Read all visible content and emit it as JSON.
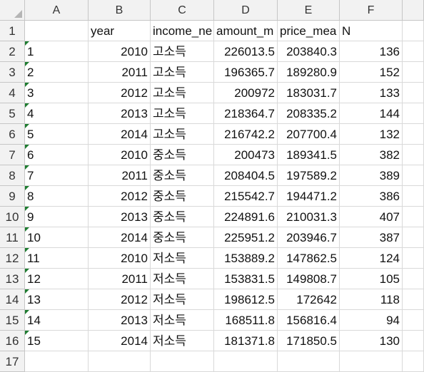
{
  "columns": [
    "A",
    "B",
    "C",
    "D",
    "E",
    "F"
  ],
  "row_numbers": [
    "1",
    "2",
    "3",
    "4",
    "5",
    "6",
    "7",
    "8",
    "9",
    "10",
    "11",
    "12",
    "13",
    "14",
    "15",
    "16",
    "17"
  ],
  "header_row": [
    "",
    "year",
    "income_ne",
    "amount_m",
    "price_mea",
    "N"
  ],
  "rows": [
    [
      "1",
      "2010",
      "고소득",
      "226013.5",
      "203840.3",
      "136"
    ],
    [
      "2",
      "2011",
      "고소득",
      "196365.7",
      "189280.9",
      "152"
    ],
    [
      "3",
      "2012",
      "고소득",
      "200972",
      "183031.7",
      "133"
    ],
    [
      "4",
      "2013",
      "고소득",
      "218364.7",
      "208335.2",
      "144"
    ],
    [
      "5",
      "2014",
      "고소득",
      "216742.2",
      "207700.4",
      "132"
    ],
    [
      "6",
      "2010",
      "중소득",
      "200473",
      "189341.5",
      "382"
    ],
    [
      "7",
      "2011",
      "중소득",
      "208404.5",
      "197589.2",
      "389"
    ],
    [
      "8",
      "2012",
      "중소득",
      "215542.7",
      "194471.2",
      "386"
    ],
    [
      "9",
      "2013",
      "중소득",
      "224891.6",
      "210031.3",
      "407"
    ],
    [
      "10",
      "2014",
      "중소득",
      "225951.2",
      "203946.7",
      "387"
    ],
    [
      "11",
      "2010",
      "저소득",
      "153889.2",
      "147862.5",
      "124"
    ],
    [
      "12",
      "2011",
      "저소득",
      "153831.5",
      "149808.7",
      "105"
    ],
    [
      "13",
      "2012",
      "저소득",
      "198612.5",
      "172642",
      "118"
    ],
    [
      "14",
      "2013",
      "저소득",
      "168511.8",
      "156816.4",
      "94"
    ],
    [
      "15",
      "2014",
      "저소득",
      "181371.8",
      "171850.5",
      "130"
    ]
  ],
  "colors": {
    "header_bg": "#f2f2f2",
    "grid": "#d9d9d9",
    "text_indicator": "#1e7c30"
  }
}
